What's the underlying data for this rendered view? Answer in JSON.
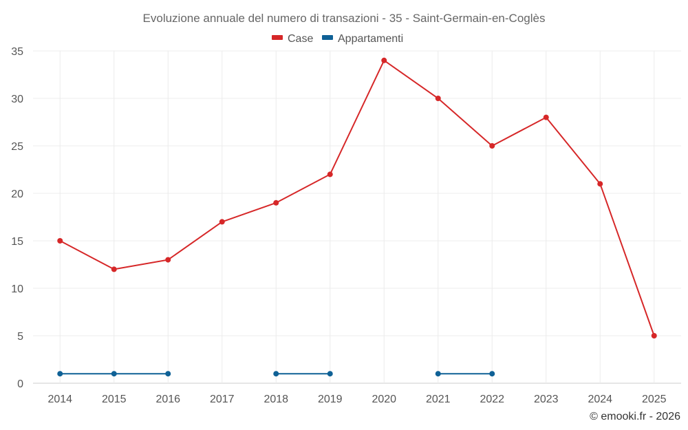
{
  "chart_data": {
    "type": "line",
    "title": "Evoluzione annuale del numero di transazioni - 35 - Saint-Germain-en-Coglès",
    "categories": [
      "2014",
      "2015",
      "2016",
      "2017",
      "2018",
      "2019",
      "2020",
      "2021",
      "2022",
      "2023",
      "2024",
      "2025"
    ],
    "series": [
      {
        "name": "Case",
        "color": "#d62728",
        "values": [
          15,
          12,
          13,
          17,
          19,
          22,
          34,
          30,
          25,
          28,
          21,
          5
        ]
      },
      {
        "name": "Appartamenti",
        "color": "#0f6196",
        "values": [
          1,
          1,
          1,
          null,
          1,
          1,
          null,
          1,
          1,
          null,
          null,
          null
        ]
      }
    ],
    "ylim": [
      0,
      35
    ],
    "yticks": [
      0,
      5,
      10,
      15,
      20,
      25,
      30,
      35
    ],
    "grid": true,
    "legend": "top-center",
    "xlabel": "",
    "ylabel": ""
  },
  "credit": "© emooki.fr - 2026"
}
